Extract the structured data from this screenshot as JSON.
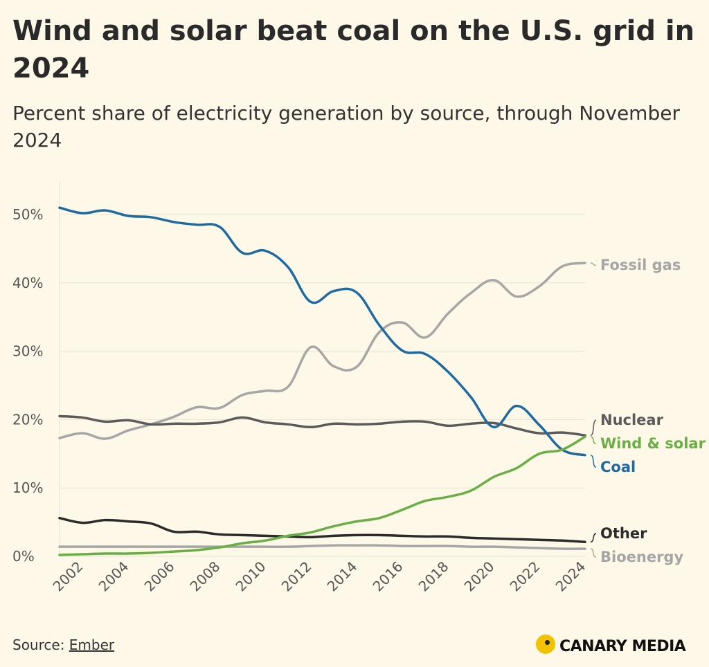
{
  "header": {
    "title": "Wind and solar beat coal on the U.S. grid in 2024",
    "subtitle": "Percent share of electricity generation by source, through November 2024"
  },
  "footer": {
    "source_label": "Source:",
    "source_link": "Ember",
    "brand": "CANARY MEDIA"
  },
  "chart_data": {
    "type": "line",
    "title": "Wind and solar beat coal on the U.S. grid in 2024",
    "subtitle": "Percent share of electricity generation by source, through November 2024",
    "xlabel": "",
    "ylabel": "",
    "xlim": [
      2001,
      2024
    ],
    "ylim": [
      0,
      55
    ],
    "yticks": [
      0,
      10,
      20,
      30,
      40,
      50
    ],
    "ytick_labels": [
      "0%",
      "10%",
      "20%",
      "30%",
      "40%",
      "50%"
    ],
    "xticks": [
      2002,
      2004,
      2006,
      2008,
      2010,
      2012,
      2014,
      2016,
      2018,
      2020,
      2022,
      2024
    ],
    "xtick_labels": [
      "2002",
      "2004",
      "2006",
      "2008",
      "2010",
      "2012",
      "2014",
      "2016",
      "2018",
      "2020",
      "2022",
      "2024"
    ],
    "grid": true,
    "legend": "direct labels at right end of lines",
    "series": [
      {
        "name": "Fossil gas",
        "color": "#a6a6a6",
        "x": [
          2001,
          2002,
          2003,
          2004,
          2005,
          2006,
          2007,
          2008,
          2009,
          2010,
          2011,
          2012,
          2013,
          2014,
          2015,
          2016,
          2017,
          2018,
          2019,
          2020,
          2021,
          2022,
          2023,
          2024
        ],
        "values": [
          17.3,
          18.0,
          17.2,
          18.4,
          19.3,
          20.4,
          21.8,
          21.7,
          23.6,
          24.2,
          24.8,
          30.6,
          27.8,
          27.7,
          32.8,
          34.2,
          32.0,
          35.5,
          38.5,
          40.4,
          38.0,
          39.5,
          42.4,
          42.9
        ]
      },
      {
        "name": "Nuclear",
        "color": "#5b5b5b",
        "x": [
          2001,
          2002,
          2003,
          2004,
          2005,
          2006,
          2007,
          2008,
          2009,
          2010,
          2011,
          2012,
          2013,
          2014,
          2015,
          2016,
          2017,
          2018,
          2019,
          2020,
          2021,
          2022,
          2023,
          2024
        ],
        "values": [
          20.5,
          20.3,
          19.7,
          19.9,
          19.3,
          19.4,
          19.4,
          19.6,
          20.3,
          19.6,
          19.3,
          18.9,
          19.4,
          19.3,
          19.4,
          19.7,
          19.7,
          19.1,
          19.4,
          19.5,
          18.7,
          18.0,
          18.1,
          17.7
        ]
      },
      {
        "name": "Wind & solar",
        "color": "#6aaf45",
        "x": [
          2001,
          2002,
          2003,
          2004,
          2005,
          2006,
          2007,
          2008,
          2009,
          2010,
          2011,
          2012,
          2013,
          2014,
          2015,
          2016,
          2017,
          2018,
          2019,
          2020,
          2021,
          2022,
          2023,
          2024
        ],
        "values": [
          0.2,
          0.3,
          0.4,
          0.4,
          0.5,
          0.7,
          0.9,
          1.3,
          1.9,
          2.3,
          3.0,
          3.5,
          4.4,
          5.1,
          5.6,
          6.8,
          8.1,
          8.7,
          9.6,
          11.6,
          12.9,
          15.0,
          15.6,
          17.5
        ]
      },
      {
        "name": "Coal",
        "color": "#1f6aa0",
        "x": [
          2001,
          2002,
          2003,
          2004,
          2005,
          2006,
          2007,
          2008,
          2009,
          2010,
          2011,
          2012,
          2013,
          2014,
          2015,
          2016,
          2017,
          2018,
          2019,
          2020,
          2021,
          2022,
          2023,
          2024
        ],
        "values": [
          51.0,
          50.2,
          50.6,
          49.8,
          49.6,
          48.9,
          48.5,
          48.2,
          44.4,
          44.7,
          42.3,
          37.2,
          38.8,
          38.6,
          33.8,
          30.1,
          29.6,
          27.0,
          23.3,
          18.9,
          22.0,
          19.2,
          15.6,
          14.8
        ]
      },
      {
        "name": "Other",
        "color": "#2b2b2b",
        "x": [
          2001,
          2002,
          2003,
          2004,
          2005,
          2006,
          2007,
          2008,
          2009,
          2010,
          2011,
          2012,
          2013,
          2014,
          2015,
          2016,
          2017,
          2018,
          2019,
          2020,
          2021,
          2022,
          2023,
          2024
        ],
        "values": [
          5.6,
          4.9,
          5.3,
          5.1,
          4.8,
          3.6,
          3.6,
          3.2,
          3.1,
          3.0,
          2.9,
          2.8,
          3.0,
          3.1,
          3.1,
          3.0,
          2.9,
          2.9,
          2.7,
          2.6,
          2.5,
          2.4,
          2.3,
          2.1
        ]
      },
      {
        "name": "Bioenergy",
        "color": "#a6a6a6",
        "x": [
          2001,
          2002,
          2003,
          2004,
          2005,
          2006,
          2007,
          2008,
          2009,
          2010,
          2011,
          2012,
          2013,
          2014,
          2015,
          2016,
          2017,
          2018,
          2019,
          2020,
          2021,
          2022,
          2023,
          2024
        ],
        "values": [
          1.4,
          1.4,
          1.4,
          1.4,
          1.4,
          1.4,
          1.4,
          1.4,
          1.4,
          1.4,
          1.4,
          1.5,
          1.6,
          1.6,
          1.6,
          1.5,
          1.5,
          1.5,
          1.4,
          1.4,
          1.3,
          1.2,
          1.1,
          1.1
        ]
      }
    ]
  }
}
